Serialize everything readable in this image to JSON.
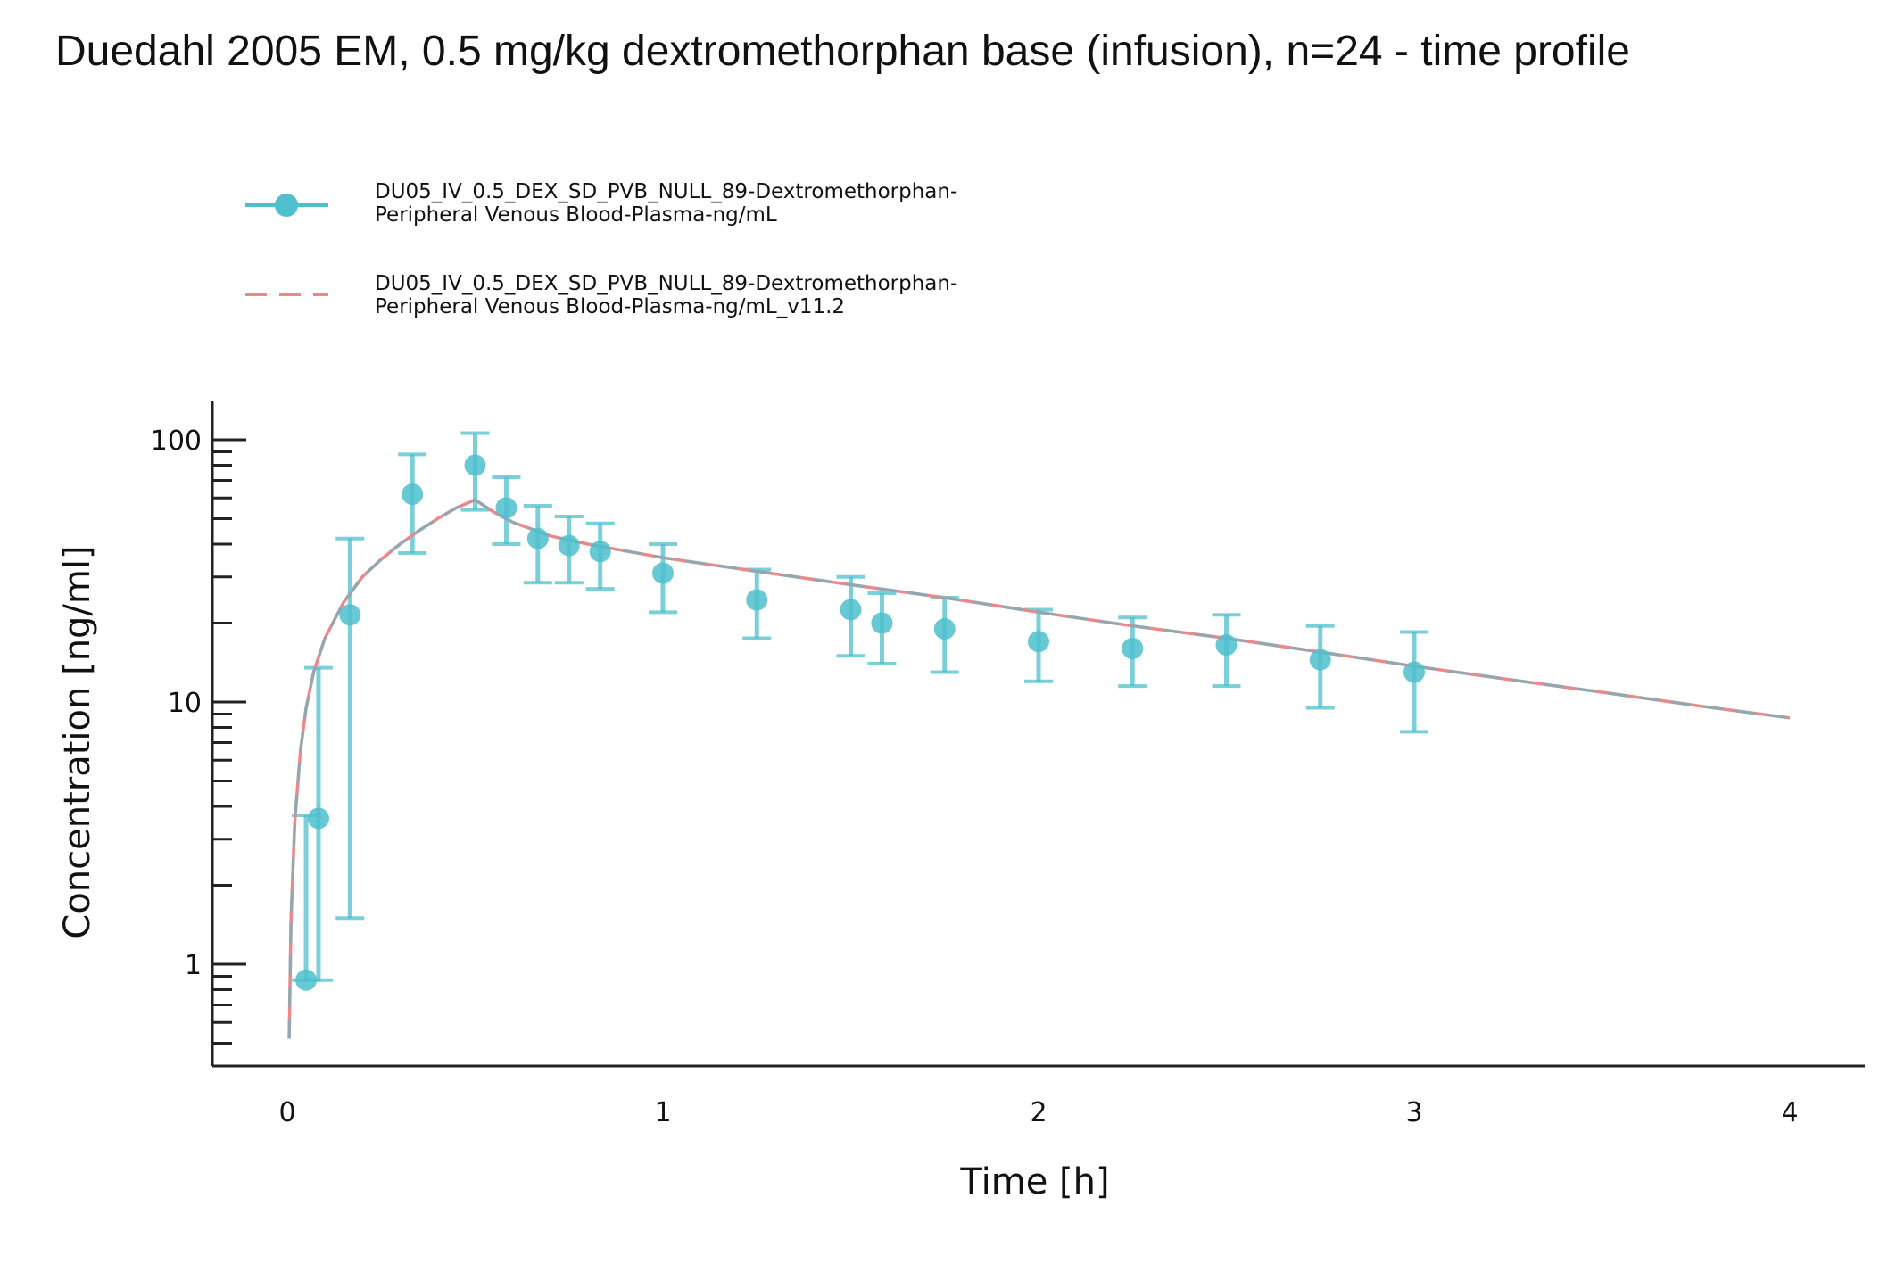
{
  "chart_data": {
    "type": "line",
    "title": "Duedahl 2005 EM, 0.5 mg/kg dextromethorphan base (infusion), n=24 - time profile",
    "xlabel": "Time [h]",
    "ylabel": "Concentration [ng/ml]",
    "xlim": [
      -0.2,
      4.2
    ],
    "ylim": [
      0.45,
      140
    ],
    "y_scale": "log",
    "x_ticks": [
      0,
      1,
      2,
      3,
      4
    ],
    "x_tick_labels": [
      "0",
      "1",
      "2",
      "3",
      "4"
    ],
    "y_ticks": [
      1,
      10,
      100
    ],
    "y_tick_labels": [
      "1",
      "10",
      "100"
    ],
    "grid": false,
    "legend_position": "top-left",
    "colors": {
      "observed": "#4ebfcc",
      "simulated": "#e8898c",
      "simulated_overlay": "#4ebfcc"
    },
    "series": [
      {
        "name": "DU05_IV_0.5_DEX_SD_PVB_NULL_89-Dextromethorphan-Peripheral Venous Blood-Plasma-ng/mL",
        "legend_lines": [
          "DU05_IV_0.5_DEX_SD_PVB_NULL_89-Dextromethorphan-",
          "Peripheral Venous Blood-Plasma-ng/mL"
        ],
        "kind": "observed",
        "points": [
          {
            "x": 0.05,
            "y": 0.87,
            "lo": 0.87,
            "hi": 3.7
          },
          {
            "x": 0.083,
            "y": 3.6,
            "lo": 0.87,
            "hi": 13.5
          },
          {
            "x": 0.167,
            "y": 21.5,
            "lo": 1.5,
            "hi": 42
          },
          {
            "x": 0.333,
            "y": 62,
            "lo": 37,
            "hi": 88
          },
          {
            "x": 0.5,
            "y": 80,
            "lo": 54,
            "hi": 106
          },
          {
            "x": 0.583,
            "y": 55,
            "lo": 40,
            "hi": 72
          },
          {
            "x": 0.667,
            "y": 42,
            "lo": 28.5,
            "hi": 56
          },
          {
            "x": 0.75,
            "y": 39.5,
            "lo": 28.5,
            "hi": 51
          },
          {
            "x": 0.833,
            "y": 37.5,
            "lo": 27,
            "hi": 48
          },
          {
            "x": 1.0,
            "y": 31,
            "lo": 22,
            "hi": 40
          },
          {
            "x": 1.25,
            "y": 24.5,
            "lo": 17.5,
            "hi": 32
          },
          {
            "x": 1.5,
            "y": 22.5,
            "lo": 15,
            "hi": 30
          },
          {
            "x": 1.583,
            "y": 20,
            "lo": 14,
            "hi": 26
          },
          {
            "x": 1.75,
            "y": 19,
            "lo": 13,
            "hi": 25
          },
          {
            "x": 2.0,
            "y": 17,
            "lo": 12,
            "hi": 22.5
          },
          {
            "x": 2.25,
            "y": 16,
            "lo": 11.5,
            "hi": 21
          },
          {
            "x": 2.5,
            "y": 16.5,
            "lo": 11.5,
            "hi": 21.5
          },
          {
            "x": 2.75,
            "y": 14.5,
            "lo": 9.5,
            "hi": 19.5
          },
          {
            "x": 3.0,
            "y": 13,
            "lo": 7.7,
            "hi": 18.5
          }
        ]
      },
      {
        "name": "DU05_IV_0.5_DEX_SD_PVB_NULL_89-Dextromethorphan-Peripheral Venous Blood-Plasma-ng/mL_v11.2",
        "legend_lines": [
          "DU05_IV_0.5_DEX_SD_PVB_NULL_89-Dextromethorphan-",
          "Peripheral Venous Blood-Plasma-ng/mL_v11.2"
        ],
        "kind": "simulated",
        "points": [
          {
            "x": 0.005,
            "y": 0.52
          },
          {
            "x": 0.01,
            "y": 1.5
          },
          {
            "x": 0.02,
            "y": 3.5
          },
          {
            "x": 0.035,
            "y": 6.5
          },
          {
            "x": 0.05,
            "y": 9.5
          },
          {
            "x": 0.07,
            "y": 13
          },
          {
            "x": 0.1,
            "y": 17.5
          },
          {
            "x": 0.15,
            "y": 24
          },
          {
            "x": 0.2,
            "y": 30
          },
          {
            "x": 0.25,
            "y": 35
          },
          {
            "x": 0.3,
            "y": 40
          },
          {
            "x": 0.35,
            "y": 45
          },
          {
            "x": 0.4,
            "y": 50
          },
          {
            "x": 0.45,
            "y": 55
          },
          {
            "x": 0.5,
            "y": 59
          },
          {
            "x": 0.55,
            "y": 53
          },
          {
            "x": 0.6,
            "y": 48.5
          },
          {
            "x": 0.7,
            "y": 43
          },
          {
            "x": 0.8,
            "y": 40
          },
          {
            "x": 1.0,
            "y": 35.5
          },
          {
            "x": 1.25,
            "y": 31.5
          },
          {
            "x": 1.5,
            "y": 28
          },
          {
            "x": 1.75,
            "y": 25
          },
          {
            "x": 2.0,
            "y": 22
          },
          {
            "x": 2.25,
            "y": 19.5
          },
          {
            "x": 2.5,
            "y": 17.5
          },
          {
            "x": 2.75,
            "y": 15.5
          },
          {
            "x": 3.0,
            "y": 13.7
          },
          {
            "x": 3.25,
            "y": 12.2
          },
          {
            "x": 3.5,
            "y": 10.9
          },
          {
            "x": 3.75,
            "y": 9.7
          },
          {
            "x": 4.0,
            "y": 8.7
          }
        ]
      }
    ]
  }
}
